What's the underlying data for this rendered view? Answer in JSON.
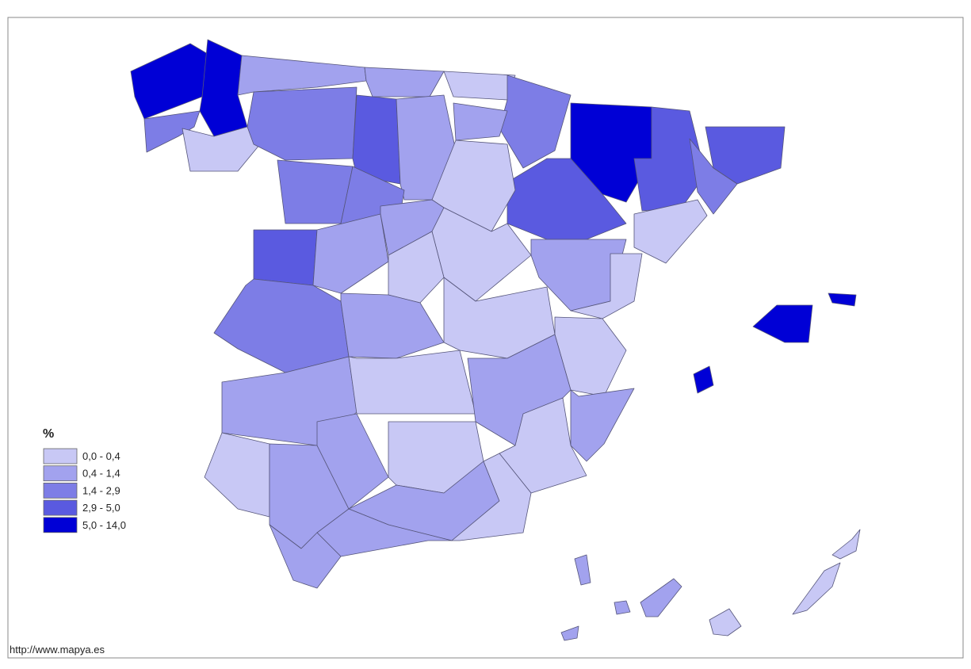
{
  "legend": {
    "title": "%",
    "classes": [
      {
        "label": "0,0 - 0,4",
        "color": "#c8c8f5"
      },
      {
        "label": "0,4 - 1,4",
        "color": "#a2a2ee"
      },
      {
        "label": "1,4 - 2,9",
        "color": "#7d7de6"
      },
      {
        "label": "2,9 - 5,0",
        "color": "#5a5ae0"
      },
      {
        "label": "5,0 - 14,0",
        "color": "#0000d6"
      }
    ]
  },
  "source": "http://www.mapya.es"
}
